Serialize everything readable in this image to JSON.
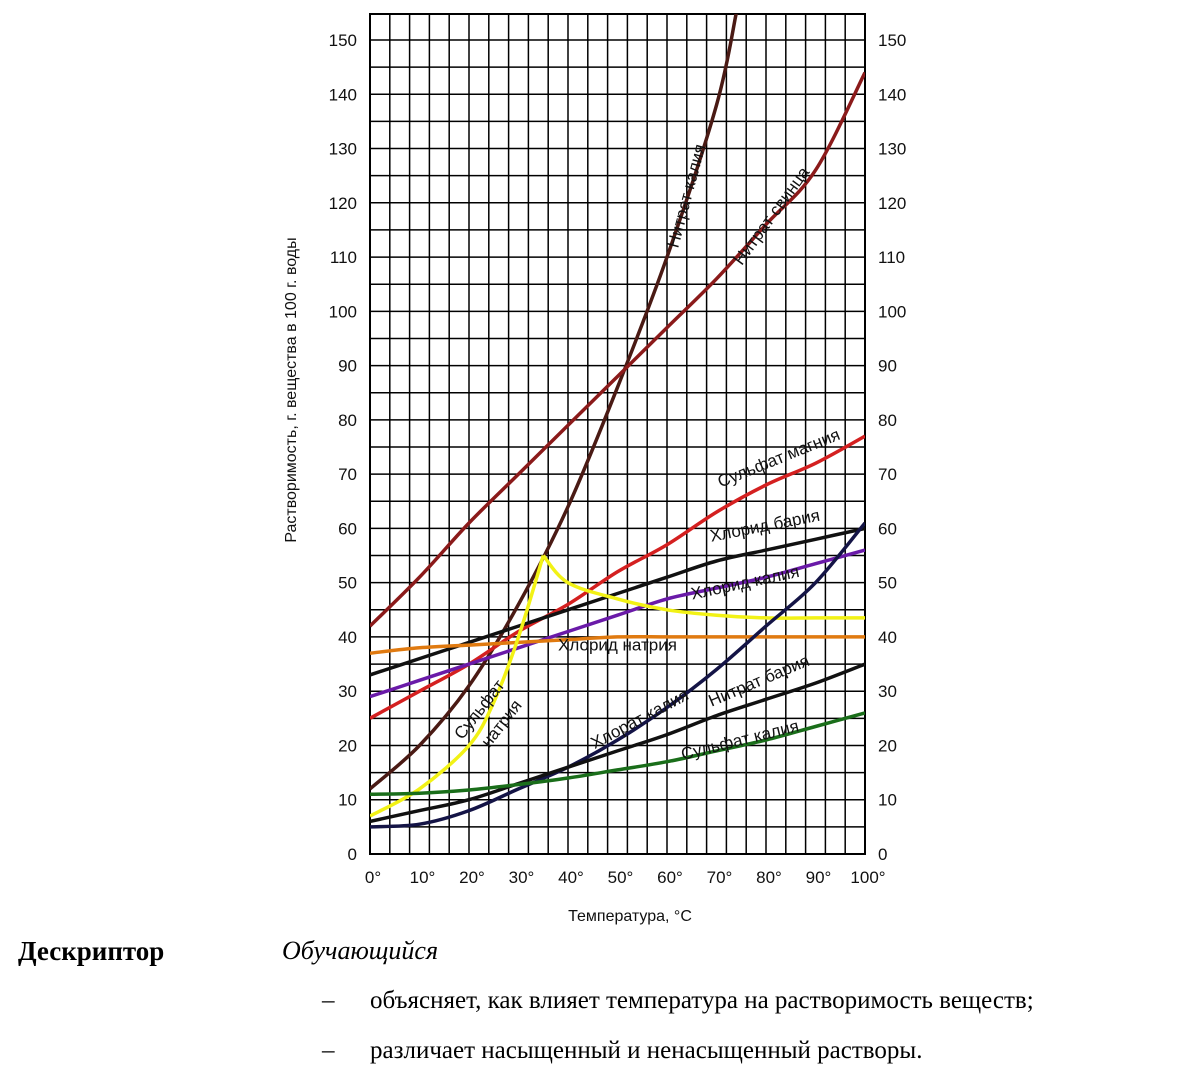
{
  "chart_data": {
    "type": "line",
    "xlabel": "Температура, °С",
    "ylabel": "Растворимость, г. вещества в 100 г. воды",
    "xlim": [
      0,
      100
    ],
    "ylim": [
      0,
      150
    ],
    "x_tick_labels": [
      "0°",
      "10°",
      "20°",
      "30°",
      "40°",
      "50°",
      "60°",
      "70°",
      "80°",
      "90°",
      "100°"
    ],
    "y_tick_labels": [
      "0",
      "10",
      "20",
      "30",
      "40",
      "50",
      "60",
      "70",
      "80",
      "90",
      "100",
      "110",
      "120",
      "130",
      "140",
      "150"
    ],
    "grid": true,
    "series": [
      {
        "name": "Нитрат калия",
        "color": "#4a1a14",
        "points": [
          [
            0,
            12
          ],
          [
            10,
            20
          ],
          [
            20,
            31
          ],
          [
            30,
            46
          ],
          [
            40,
            64
          ],
          [
            50,
            86
          ],
          [
            60,
            110
          ],
          [
            70,
            138
          ],
          [
            74,
            155
          ]
        ]
      },
      {
        "name": "Нитрат свинца",
        "color": "#8b1a1a",
        "points": [
          [
            0,
            42
          ],
          [
            10,
            51
          ],
          [
            20,
            61
          ],
          [
            30,
            70
          ],
          [
            40,
            79
          ],
          [
            50,
            88
          ],
          [
            60,
            97
          ],
          [
            70,
            106
          ],
          [
            80,
            116
          ],
          [
            90,
            126
          ],
          [
            100,
            144
          ]
        ]
      },
      {
        "name": "Сульфат магния",
        "color": "#d42020",
        "points": [
          [
            0,
            25
          ],
          [
            10,
            30
          ],
          [
            20,
            35
          ],
          [
            30,
            41
          ],
          [
            40,
            46
          ],
          [
            50,
            52
          ],
          [
            60,
            57
          ],
          [
            70,
            63
          ],
          [
            80,
            68
          ],
          [
            90,
            72
          ],
          [
            100,
            77
          ]
        ]
      },
      {
        "name": "Хлорид бария",
        "color": "#111111",
        "points": [
          [
            0,
            33
          ],
          [
            10,
            36
          ],
          [
            20,
            39
          ],
          [
            30,
            42
          ],
          [
            40,
            45
          ],
          [
            50,
            48
          ],
          [
            60,
            51
          ],
          [
            70,
            54
          ],
          [
            80,
            56
          ],
          [
            90,
            58
          ],
          [
            100,
            60
          ]
        ]
      },
      {
        "name": "Хлорид калия",
        "color": "#6a1aa8",
        "points": [
          [
            0,
            29
          ],
          [
            10,
            32
          ],
          [
            20,
            35
          ],
          [
            30,
            38
          ],
          [
            40,
            41
          ],
          [
            50,
            44
          ],
          [
            60,
            47
          ],
          [
            70,
            49
          ],
          [
            80,
            51
          ],
          [
            90,
            53.5
          ],
          [
            100,
            56
          ]
        ]
      },
      {
        "name": "Хлорид натрия",
        "color": "#e07a10",
        "points": [
          [
            0,
            37
          ],
          [
            10,
            38
          ],
          [
            20,
            38.5
          ],
          [
            30,
            39
          ],
          [
            40,
            39.5
          ],
          [
            50,
            40
          ],
          [
            60,
            40
          ],
          [
            70,
            40
          ],
          [
            80,
            40
          ],
          [
            90,
            40
          ],
          [
            100,
            40
          ]
        ]
      },
      {
        "name": "Сульфат натрия",
        "color": "#f2f215",
        "points": [
          [
            0,
            7
          ],
          [
            10,
            12
          ],
          [
            20,
            20
          ],
          [
            25,
            28
          ],
          [
            30,
            40
          ],
          [
            35,
            55
          ],
          [
            40,
            50
          ],
          [
            50,
            47
          ],
          [
            60,
            45
          ],
          [
            70,
            44
          ],
          [
            80,
            43.5
          ],
          [
            90,
            43.5
          ],
          [
            100,
            43.5
          ]
        ]
      },
      {
        "name": "Хлорат калия",
        "color": "#141446",
        "points": [
          [
            0,
            5
          ],
          [
            10,
            5.5
          ],
          [
            20,
            8
          ],
          [
            30,
            12
          ],
          [
            40,
            16
          ],
          [
            50,
            21
          ],
          [
            60,
            27
          ],
          [
            70,
            34
          ],
          [
            80,
            42
          ],
          [
            90,
            50
          ],
          [
            100,
            61
          ]
        ]
      },
      {
        "name": "Нитрат бария",
        "color": "#111111",
        "points": [
          [
            0,
            6
          ],
          [
            10,
            8
          ],
          [
            20,
            10
          ],
          [
            30,
            13
          ],
          [
            40,
            16
          ],
          [
            50,
            19
          ],
          [
            60,
            22
          ],
          [
            70,
            25.5
          ],
          [
            80,
            28.5
          ],
          [
            90,
            31.5
          ],
          [
            100,
            35
          ]
        ]
      },
      {
        "name": "Сульфат калия",
        "color": "#1a6e1a",
        "points": [
          [
            0,
            11
          ],
          [
            10,
            11.2
          ],
          [
            20,
            11.8
          ],
          [
            30,
            12.8
          ],
          [
            40,
            14
          ],
          [
            50,
            15.5
          ],
          [
            60,
            17
          ],
          [
            70,
            19
          ],
          [
            80,
            21
          ],
          [
            90,
            23.5
          ],
          [
            100,
            26
          ]
        ]
      }
    ]
  },
  "descriptor": {
    "heading": "Дескриптор",
    "subject": "Обучающийся",
    "bullet_mark": "–",
    "items": [
      "объясняет, как влияет температура на растворимость веществ;",
      "различает насыщенный и ненасыщенный растворы."
    ]
  }
}
